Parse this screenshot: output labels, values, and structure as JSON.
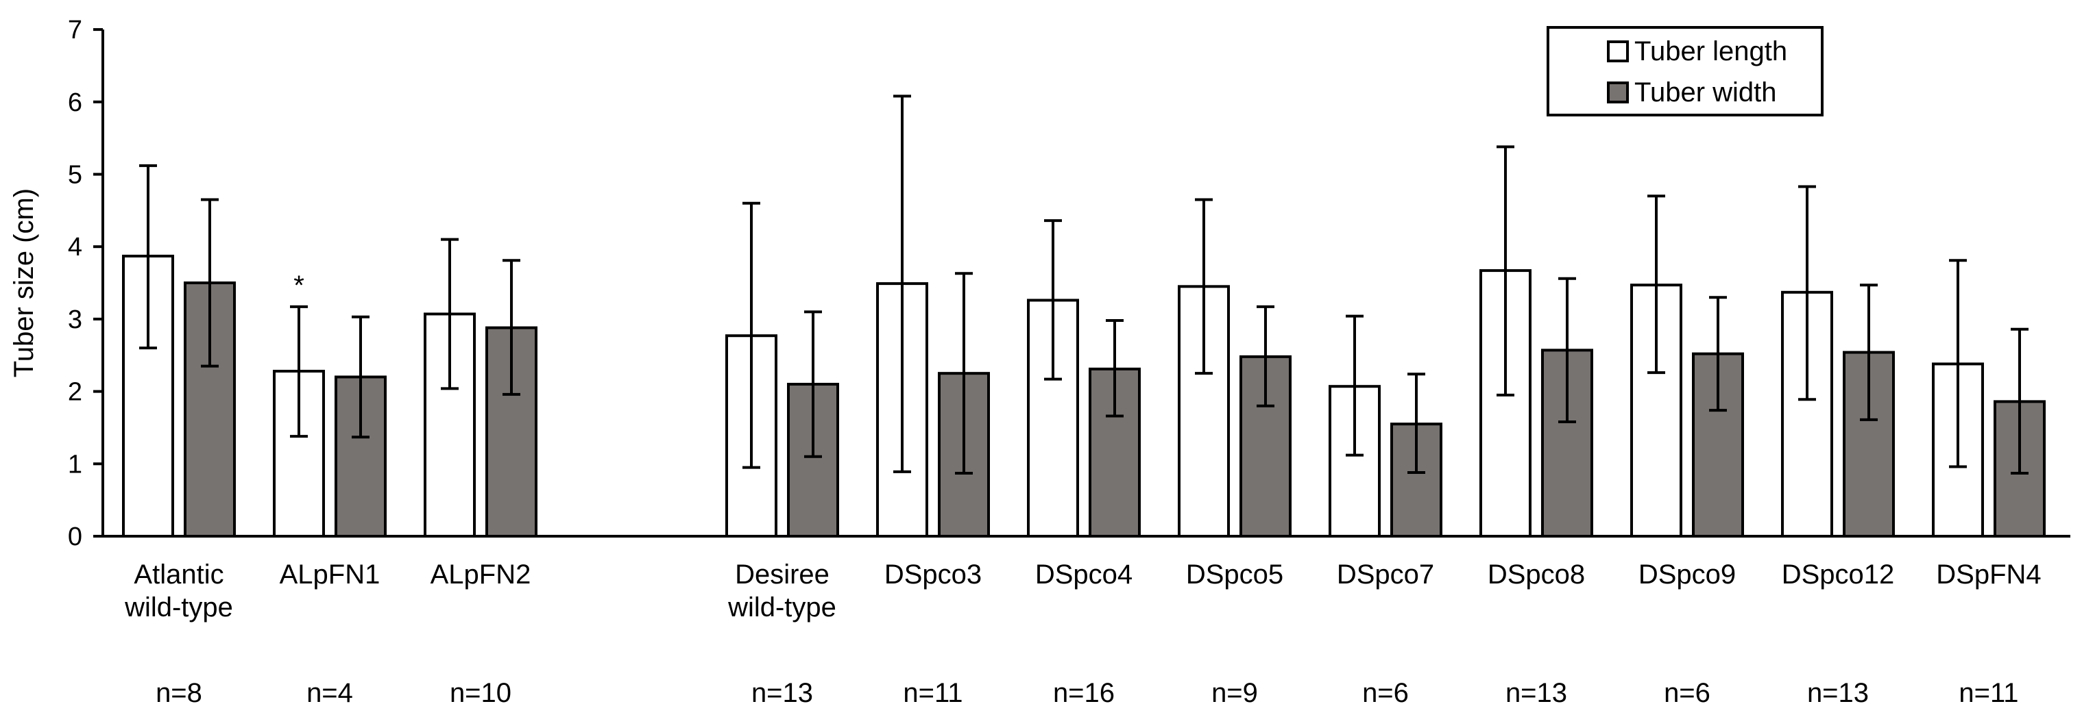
{
  "chart_data": {
    "type": "bar",
    "ylabel": "Tuber size (cm)",
    "ylim": [
      0,
      7
    ],
    "yticks": [
      0,
      1,
      2,
      3,
      4,
      5,
      6,
      7
    ],
    "grid": false,
    "legend_position": "top-right",
    "categories": [
      {
        "label_lines": [
          "Atlantic",
          "wild-type"
        ],
        "n": "n=8",
        "slot": 0
      },
      {
        "label_lines": [
          "ALpFN1"
        ],
        "n": "n=4",
        "slot": 1
      },
      {
        "label_lines": [
          "ALpFN2"
        ],
        "n": "n=10",
        "slot": 2
      },
      {
        "label_lines": [
          "Desiree",
          "wild-type"
        ],
        "n": "n=13",
        "slot": 4
      },
      {
        "label_lines": [
          "DSpco3"
        ],
        "n": "n=11",
        "slot": 5
      },
      {
        "label_lines": [
          "DSpco4"
        ],
        "n": "n=16",
        "slot": 6
      },
      {
        "label_lines": [
          "DSpco5"
        ],
        "n": "n=9",
        "slot": 7
      },
      {
        "label_lines": [
          "DSpco7"
        ],
        "n": "n=6",
        "slot": 8
      },
      {
        "label_lines": [
          "DSpco8"
        ],
        "n": "n=13",
        "slot": 9
      },
      {
        "label_lines": [
          "DSpco9"
        ],
        "n": "n=6",
        "slot": 10
      },
      {
        "label_lines": [
          "DSpco12"
        ],
        "n": "n=13",
        "slot": 11
      },
      {
        "label_lines": [
          "DSpFN4"
        ],
        "n": "n=11",
        "slot": 12
      }
    ],
    "series": [
      {
        "name": "Tuber length",
        "color": "#ffffff",
        "values": [
          3.87,
          2.28,
          3.07,
          2.77,
          3.49,
          3.26,
          3.45,
          2.07,
          3.67,
          3.47,
          3.37,
          2.38
        ],
        "error_upper": [
          5.12,
          3.17,
          4.1,
          4.6,
          6.08,
          4.36,
          4.65,
          3.04,
          5.38,
          4.7,
          4.83,
          3.81
        ],
        "error_lower": [
          2.6,
          1.38,
          2.04,
          0.95,
          0.89,
          2.17,
          2.25,
          1.12,
          1.95,
          2.26,
          1.89,
          0.96
        ]
      },
      {
        "name": "Tuber width",
        "color": "#777371",
        "values": [
          3.5,
          2.2,
          2.88,
          2.1,
          2.25,
          2.31,
          2.48,
          1.55,
          2.57,
          2.52,
          2.54,
          1.86
        ],
        "error_upper": [
          4.65,
          3.03,
          3.81,
          3.1,
          3.63,
          2.98,
          3.17,
          2.24,
          3.56,
          3.3,
          3.47,
          2.86
        ],
        "error_lower": [
          2.35,
          1.37,
          1.96,
          1.1,
          0.87,
          1.66,
          1.8,
          0.88,
          1.58,
          1.74,
          1.61,
          0.87
        ]
      }
    ],
    "annotations": [
      {
        "text": "*",
        "category_index": 1,
        "series_index": 0
      }
    ]
  }
}
